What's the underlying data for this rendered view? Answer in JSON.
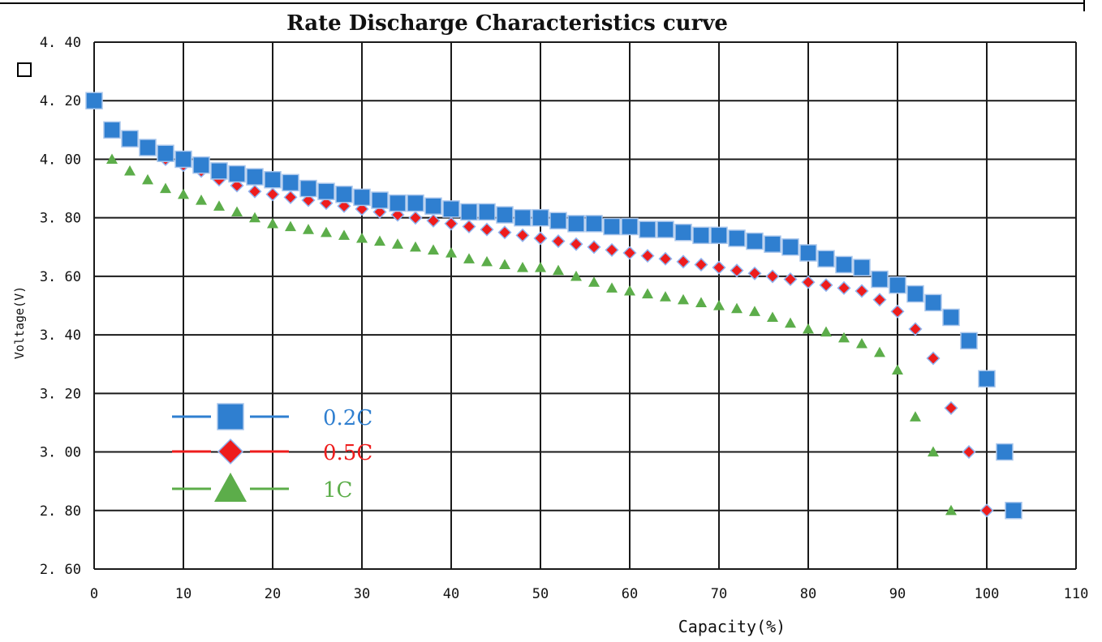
{
  "chart_data": {
    "type": "scatter",
    "title": "Rate Discharge Characteristics curve",
    "xlabel": "Capacity(%)",
    "ylabel": "Voltage(V)",
    "xlim": [
      0,
      110
    ],
    "ylim": [
      2.6,
      4.4
    ],
    "x_ticks": [
      "0",
      "10",
      "20",
      "30",
      "40",
      "50",
      "60",
      "70",
      "80",
      "90",
      "100",
      "110"
    ],
    "y_ticks": [
      "2.60",
      "2.80",
      "3.00",
      "3.20",
      "3.40",
      "3.60",
      "3.80",
      "4.00",
      "4.20",
      "4.40"
    ],
    "grid": true,
    "legend_position": "lower-left",
    "series": [
      {
        "name": "0.2C",
        "color": "#2f7fd0",
        "marker": "square",
        "x": [
          0,
          2,
          4,
          6,
          8,
          10,
          12,
          14,
          16,
          18,
          20,
          22,
          24,
          26,
          28,
          30,
          32,
          34,
          36,
          38,
          40,
          42,
          44,
          46,
          48,
          50,
          52,
          54,
          56,
          58,
          60,
          62,
          64,
          66,
          68,
          70,
          72,
          74,
          76,
          78,
          80,
          82,
          84,
          86,
          88,
          90,
          92,
          94,
          96,
          98,
          100,
          102,
          103
        ],
        "y": [
          4.2,
          4.1,
          4.07,
          4.04,
          4.02,
          4.0,
          3.98,
          3.96,
          3.95,
          3.94,
          3.93,
          3.92,
          3.9,
          3.89,
          3.88,
          3.87,
          3.86,
          3.85,
          3.85,
          3.84,
          3.83,
          3.82,
          3.82,
          3.81,
          3.8,
          3.8,
          3.79,
          3.78,
          3.78,
          3.77,
          3.77,
          3.76,
          3.76,
          3.75,
          3.74,
          3.74,
          3.73,
          3.72,
          3.71,
          3.7,
          3.68,
          3.66,
          3.64,
          3.63,
          3.59,
          3.57,
          3.54,
          3.51,
          3.46,
          3.38,
          3.25,
          3.0,
          2.8
        ]
      },
      {
        "name": "0.5C",
        "color": "#ee1c1c",
        "marker": "diamond",
        "x": [
          8,
          10,
          12,
          14,
          16,
          18,
          20,
          22,
          24,
          26,
          28,
          30,
          32,
          34,
          36,
          38,
          40,
          42,
          44,
          46,
          48,
          50,
          52,
          54,
          56,
          58,
          60,
          62,
          64,
          66,
          68,
          70,
          72,
          74,
          76,
          78,
          80,
          82,
          84,
          86,
          88,
          90,
          92,
          94,
          96,
          98,
          100
        ],
        "y": [
          4.0,
          3.98,
          3.96,
          3.93,
          3.91,
          3.89,
          3.88,
          3.87,
          3.86,
          3.85,
          3.84,
          3.83,
          3.82,
          3.81,
          3.8,
          3.79,
          3.78,
          3.77,
          3.76,
          3.75,
          3.74,
          3.73,
          3.72,
          3.71,
          3.7,
          3.69,
          3.68,
          3.67,
          3.66,
          3.65,
          3.64,
          3.63,
          3.62,
          3.61,
          3.6,
          3.59,
          3.58,
          3.57,
          3.56,
          3.55,
          3.52,
          3.48,
          3.42,
          3.32,
          3.15,
          3.0,
          2.8
        ]
      },
      {
        "name": "1C",
        "color": "#5cad4a",
        "marker": "triangle",
        "x": [
          0,
          2,
          4,
          6,
          8,
          10,
          12,
          14,
          16,
          18,
          20,
          22,
          24,
          26,
          28,
          30,
          32,
          34,
          36,
          38,
          40,
          42,
          44,
          46,
          48,
          50,
          52,
          54,
          56,
          58,
          60,
          62,
          64,
          66,
          68,
          70,
          72,
          74,
          76,
          78,
          80,
          82,
          84,
          86,
          88,
          90,
          92,
          94,
          96
        ],
        "y": [
          4.2,
          4.0,
          3.96,
          3.93,
          3.9,
          3.88,
          3.86,
          3.84,
          3.82,
          3.8,
          3.78,
          3.77,
          3.76,
          3.75,
          3.74,
          3.73,
          3.72,
          3.71,
          3.7,
          3.69,
          3.68,
          3.66,
          3.65,
          3.64,
          3.63,
          3.63,
          3.62,
          3.6,
          3.58,
          3.56,
          3.55,
          3.54,
          3.53,
          3.52,
          3.51,
          3.5,
          3.49,
          3.48,
          3.46,
          3.44,
          3.42,
          3.41,
          3.39,
          3.37,
          3.34,
          3.28,
          3.12,
          3.0,
          2.8
        ]
      }
    ]
  },
  "legend": [
    {
      "label": "0.2C",
      "color": "#2f7fd0",
      "marker": "square"
    },
    {
      "label": "0.5C",
      "color": "#ee1c1c",
      "marker": "diamond"
    },
    {
      "label": "1C",
      "color": "#5cad4a",
      "marker": "triangle"
    }
  ]
}
